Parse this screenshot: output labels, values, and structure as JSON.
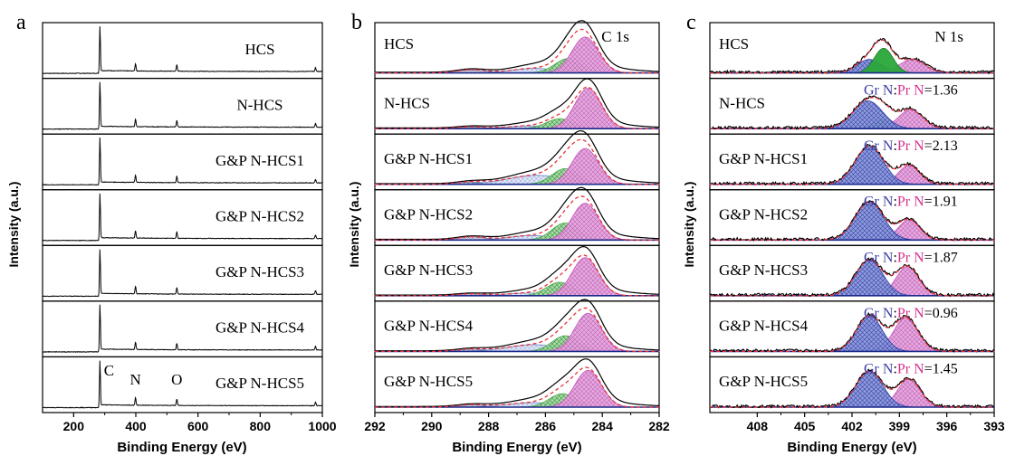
{
  "chart_data": [
    {
      "panel_letter": "a",
      "type": "line",
      "xlabel": "Binding Energy (eV)",
      "ylabel": "Intensity (a.u.)",
      "xlim": [
        100,
        1000
      ],
      "x_ticks": [
        200,
        400,
        600,
        800,
        1000
      ],
      "x_reversed": false,
      "stacked_panels": [
        "HCS",
        "N-HCS",
        "G&P N-HCS1",
        "G&P N-HCS2",
        "G&P N-HCS3",
        "G&P N-HCS4",
        "G&P N-HCS5"
      ],
      "peaks": [
        {
          "label": "C",
          "x": 284.6,
          "rel_height": 0.95
        },
        {
          "label": "N",
          "x": 399.0,
          "rel_height": 0.16
        },
        {
          "label": "O",
          "x": 532.0,
          "rel_height": 0.14
        },
        {
          "label": "",
          "x": 978.0,
          "rel_height": 0.08
        }
      ]
    },
    {
      "panel_letter": "b",
      "annotation": "C 1s",
      "type": "line",
      "xlabel": "Binding Energy (eV)",
      "ylabel": "Intensity (a.u.)",
      "xlim": [
        292,
        282
      ],
      "x_ticks": [
        292,
        290,
        288,
        286,
        284,
        282
      ],
      "x_reversed": true,
      "series": [
        {
          "name": "HCS",
          "components": [
            {
              "center": 284.6,
              "height": 0.8,
              "fwhm": 1.1
            },
            {
              "center": 285.2,
              "height": 0.32,
              "fwhm": 1.1
            },
            {
              "center": 286.4,
              "height": 0.1,
              "fwhm": 1.8
            },
            {
              "center": 288.6,
              "height": 0.07,
              "fwhm": 1.2
            }
          ]
        },
        {
          "name": "N-HCS",
          "components": [
            {
              "center": 284.5,
              "height": 0.9,
              "fwhm": 1.1
            },
            {
              "center": 285.5,
              "height": 0.22,
              "fwhm": 1.1
            },
            {
              "center": 286.6,
              "height": 0.06,
              "fwhm": 1.8
            },
            {
              "center": 288.6,
              "height": 0.04,
              "fwhm": 1.2
            }
          ]
        },
        {
          "name": "G&P N-HCS1",
          "components": [
            {
              "center": 284.6,
              "height": 0.8,
              "fwhm": 1.1
            },
            {
              "center": 285.3,
              "height": 0.35,
              "fwhm": 1.1
            },
            {
              "center": 286.3,
              "height": 0.2,
              "fwhm": 2.4
            },
            {
              "center": 288.6,
              "height": 0.05,
              "fwhm": 1.2
            }
          ]
        },
        {
          "name": "G&P N-HCS2",
          "components": [
            {
              "center": 284.6,
              "height": 0.82,
              "fwhm": 1.1
            },
            {
              "center": 285.3,
              "height": 0.38,
              "fwhm": 1.1
            },
            {
              "center": 286.5,
              "height": 0.1,
              "fwhm": 1.8
            },
            {
              "center": 288.6,
              "height": 0.07,
              "fwhm": 1.2
            }
          ]
        },
        {
          "name": "G&P N-HCS3",
          "components": [
            {
              "center": 284.6,
              "height": 0.85,
              "fwhm": 1.1
            },
            {
              "center": 285.5,
              "height": 0.3,
              "fwhm": 1.1
            },
            {
              "center": 286.6,
              "height": 0.06,
              "fwhm": 1.8
            },
            {
              "center": 288.6,
              "height": 0.04,
              "fwhm": 1.2
            }
          ]
        },
        {
          "name": "G&P N-HCS4",
          "components": [
            {
              "center": 284.5,
              "height": 0.85,
              "fwhm": 1.1
            },
            {
              "center": 285.3,
              "height": 0.35,
              "fwhm": 1.1
            },
            {
              "center": 286.4,
              "height": 0.15,
              "fwhm": 2.2
            },
            {
              "center": 288.6,
              "height": 0.05,
              "fwhm": 1.2
            }
          ]
        },
        {
          "name": "G&P N-HCS5",
          "components": [
            {
              "center": 284.5,
              "height": 0.82,
              "fwhm": 1.1
            },
            {
              "center": 285.4,
              "height": 0.3,
              "fwhm": 1.1
            },
            {
              "center": 286.4,
              "height": 0.1,
              "fwhm": 2.2
            },
            {
              "center": 288.6,
              "height": 0.05,
              "fwhm": 1.2
            }
          ]
        }
      ]
    },
    {
      "panel_letter": "c",
      "annotation": "N 1s",
      "type": "line",
      "xlabel": "Binding Energy (eV)",
      "ylabel": "Intensity (a.u.)",
      "xlim": [
        411,
        393
      ],
      "x_ticks": [
        408,
        405,
        402,
        399,
        396,
        393
      ],
      "x_reversed": true,
      "ratio_label": {
        "gr": "Gr N",
        "sep": ":",
        "pr": "Pr N",
        "eq": "="
      },
      "series": [
        {
          "name": "HCS",
          "ratio": "",
          "components": [
            {
              "center": 400.9,
              "height": 0.3,
              "fwhm": 1.8,
              "type": "blue"
            },
            {
              "center": 400.0,
              "height": 0.55,
              "fwhm": 1.4,
              "type": "green"
            },
            {
              "center": 398.2,
              "height": 0.3,
              "fwhm": 1.9,
              "type": "pink"
            }
          ]
        },
        {
          "name": "N-HCS",
          "ratio": "1.36",
          "components": [
            {
              "center": 401.0,
              "height": 0.62,
              "fwhm": 2.2,
              "type": "blue"
            },
            {
              "center": 400.0,
              "height": 0.2,
              "fwhm": 1.4,
              "type": "green"
            },
            {
              "center": 398.3,
              "height": 0.42,
              "fwhm": 1.8,
              "type": "pink"
            }
          ]
        },
        {
          "name": "G&P N-HCS1",
          "ratio": "2.13",
          "components": [
            {
              "center": 400.9,
              "height": 0.85,
              "fwhm": 2.1,
              "type": "blue"
            },
            {
              "center": 398.4,
              "height": 0.42,
              "fwhm": 1.6,
              "type": "pink"
            }
          ]
        },
        {
          "name": "G&P N-HCS2",
          "ratio": "1.91",
          "components": [
            {
              "center": 400.9,
              "height": 0.85,
              "fwhm": 2.1,
              "type": "blue"
            },
            {
              "center": 398.4,
              "height": 0.45,
              "fwhm": 1.6,
              "type": "pink"
            }
          ]
        },
        {
          "name": "G&P N-HCS3",
          "ratio": "1.87",
          "components": [
            {
              "center": 400.9,
              "height": 0.8,
              "fwhm": 2.0,
              "type": "blue"
            },
            {
              "center": 398.5,
              "height": 0.65,
              "fwhm": 1.7,
              "type": "pink"
            }
          ]
        },
        {
          "name": "G&P N-HCS4",
          "ratio": "0.96",
          "components": [
            {
              "center": 400.9,
              "height": 0.8,
              "fwhm": 1.9,
              "type": "blue"
            },
            {
              "center": 398.6,
              "height": 0.75,
              "fwhm": 1.8,
              "type": "pink"
            }
          ]
        },
        {
          "name": "G&P N-HCS5",
          "ratio": "1.45",
          "components": [
            {
              "center": 400.9,
              "height": 0.8,
              "fwhm": 2.0,
              "type": "blue"
            },
            {
              "center": 398.4,
              "height": 0.62,
              "fwhm": 1.7,
              "type": "pink"
            }
          ]
        }
      ]
    }
  ],
  "colors": {
    "axis": "#000000",
    "envelope": "#000000",
    "fit": "#e8333a",
    "baseline": "#1a2a8a",
    "c_main": "#c157b9",
    "c_main_fill": "#e3a6db",
    "c_second": "#4aa84a",
    "c_second_fill": "#a6d9a0",
    "c_broad": "#6a86c8",
    "c_broad_fill": "#c5d1ef",
    "c_high": "#6a6a9a",
    "n_gr": "#2a3aa6",
    "n_gr_fill": "#8a96d8",
    "n_pyr": "#2aa63a",
    "n_pr": "#c157b9",
    "n_pr_fill": "#e3a6db",
    "label_gr": "#3b3ba6",
    "label_pr": "#d4338f"
  }
}
